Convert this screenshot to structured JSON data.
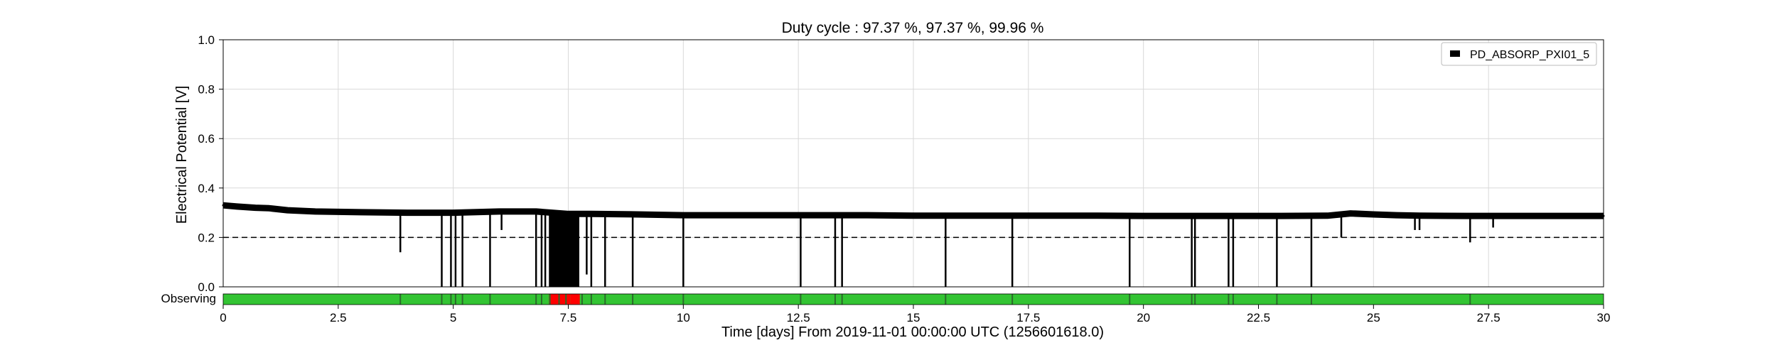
{
  "chart_data": {
    "type": "line",
    "title": "Duty cycle : 97.37 %, 97.37 %, 99.96 %",
    "xlabel": "Time [days] From 2019-11-01 00:00:00 UTC (1256601618.0)",
    "ylabel": "Electrical Potential [V]",
    "xlim": [
      0,
      30
    ],
    "ylim": [
      0,
      1.0
    ],
    "x_ticks": [
      "0",
      "2.5",
      "5",
      "7.5",
      "10",
      "12.5",
      "15",
      "17.5",
      "20",
      "22.5",
      "25",
      "27.5",
      "30"
    ],
    "y_ticks": [
      "0.0",
      "0.2",
      "0.4",
      "0.6",
      "0.8",
      "1.0"
    ],
    "grid": true,
    "legend_position": "top-right",
    "threshold": {
      "value": 0.2,
      "style": "dashed"
    },
    "series": [
      {
        "name": "PD_ABSORP_PXI01_5",
        "color": "#000000",
        "x": [
          0,
          0.3,
          0.7,
          1.0,
          1.4,
          2.0,
          3.0,
          4.0,
          5.0,
          6.0,
          6.8,
          7.5,
          8.0,
          9.0,
          10.0,
          11.0,
          12.0,
          13.0,
          14.0,
          15.0,
          16.0,
          17.0,
          18.0,
          19.0,
          20.0,
          21.0,
          22.0,
          23.0,
          24.0,
          24.5,
          25.0,
          25.5,
          26.0,
          27.0,
          28.0,
          29.0,
          30.0
        ],
        "y": [
          0.33,
          0.325,
          0.32,
          0.318,
          0.31,
          0.305,
          0.302,
          0.3,
          0.3,
          0.305,
          0.305,
          0.295,
          0.295,
          0.293,
          0.29,
          0.29,
          0.29,
          0.29,
          0.29,
          0.288,
          0.288,
          0.288,
          0.288,
          0.288,
          0.287,
          0.287,
          0.287,
          0.287,
          0.288,
          0.297,
          0.293,
          0.29,
          0.288,
          0.287,
          0.287,
          0.287,
          0.287
        ]
      }
    ],
    "dropouts": [
      {
        "x": 3.85,
        "y": 0.14
      },
      {
        "x": 4.75,
        "y": 0.0
      },
      {
        "x": 4.95,
        "y": 0.0
      },
      {
        "x": 5.05,
        "y": 0.0
      },
      {
        "x": 5.2,
        "y": 0.0
      },
      {
        "x": 5.8,
        "y": 0.0
      },
      {
        "x": 6.05,
        "y": 0.23
      },
      {
        "x": 6.8,
        "y": 0.0
      },
      {
        "x": 6.92,
        "y": 0.0
      },
      {
        "x": 7.0,
        "y": 0.0
      },
      {
        "x": 7.1,
        "y": 0.0
      },
      {
        "x": 7.2,
        "y": 0.0
      },
      {
        "x": 7.3,
        "y": 0.0
      },
      {
        "x": 7.4,
        "y": 0.0
      },
      {
        "x": 7.5,
        "y": 0.0
      },
      {
        "x": 7.6,
        "y": 0.0
      },
      {
        "x": 7.72,
        "y": 0.0
      },
      {
        "x": 7.9,
        "y": 0.05
      },
      {
        "x": 8.0,
        "y": 0.0
      },
      {
        "x": 8.3,
        "y": 0.0
      },
      {
        "x": 8.9,
        "y": 0.0
      },
      {
        "x": 10.0,
        "y": 0.0
      },
      {
        "x": 12.55,
        "y": 0.0
      },
      {
        "x": 13.3,
        "y": 0.0
      },
      {
        "x": 13.45,
        "y": 0.0
      },
      {
        "x": 15.7,
        "y": 0.0
      },
      {
        "x": 17.15,
        "y": 0.0
      },
      {
        "x": 19.7,
        "y": 0.0
      },
      {
        "x": 21.05,
        "y": 0.0
      },
      {
        "x": 21.12,
        "y": 0.0
      },
      {
        "x": 21.85,
        "y": 0.0
      },
      {
        "x": 21.95,
        "y": 0.0
      },
      {
        "x": 22.9,
        "y": 0.0
      },
      {
        "x": 23.65,
        "y": 0.0
      },
      {
        "x": 24.3,
        "y": 0.2
      },
      {
        "x": 25.9,
        "y": 0.23
      },
      {
        "x": 26.0,
        "y": 0.23
      },
      {
        "x": 27.1,
        "y": 0.18
      },
      {
        "x": 27.6,
        "y": 0.24
      }
    ],
    "observing_bar": {
      "label": "Observing",
      "on_color": "#33c433",
      "off_color": "#ff0000",
      "off_segments": [
        [
          7.08,
          7.55
        ],
        [
          7.55,
          7.75
        ]
      ],
      "boundary_ticks": [
        3.85,
        4.75,
        4.95,
        5.05,
        5.2,
        5.8,
        6.8,
        6.92,
        7.1,
        7.3,
        7.45,
        7.8,
        8.0,
        8.3,
        8.9,
        10.0,
        12.55,
        13.3,
        13.45,
        15.7,
        17.15,
        19.7,
        21.05,
        21.12,
        21.85,
        21.95,
        22.9,
        23.65,
        27.1
      ]
    }
  }
}
